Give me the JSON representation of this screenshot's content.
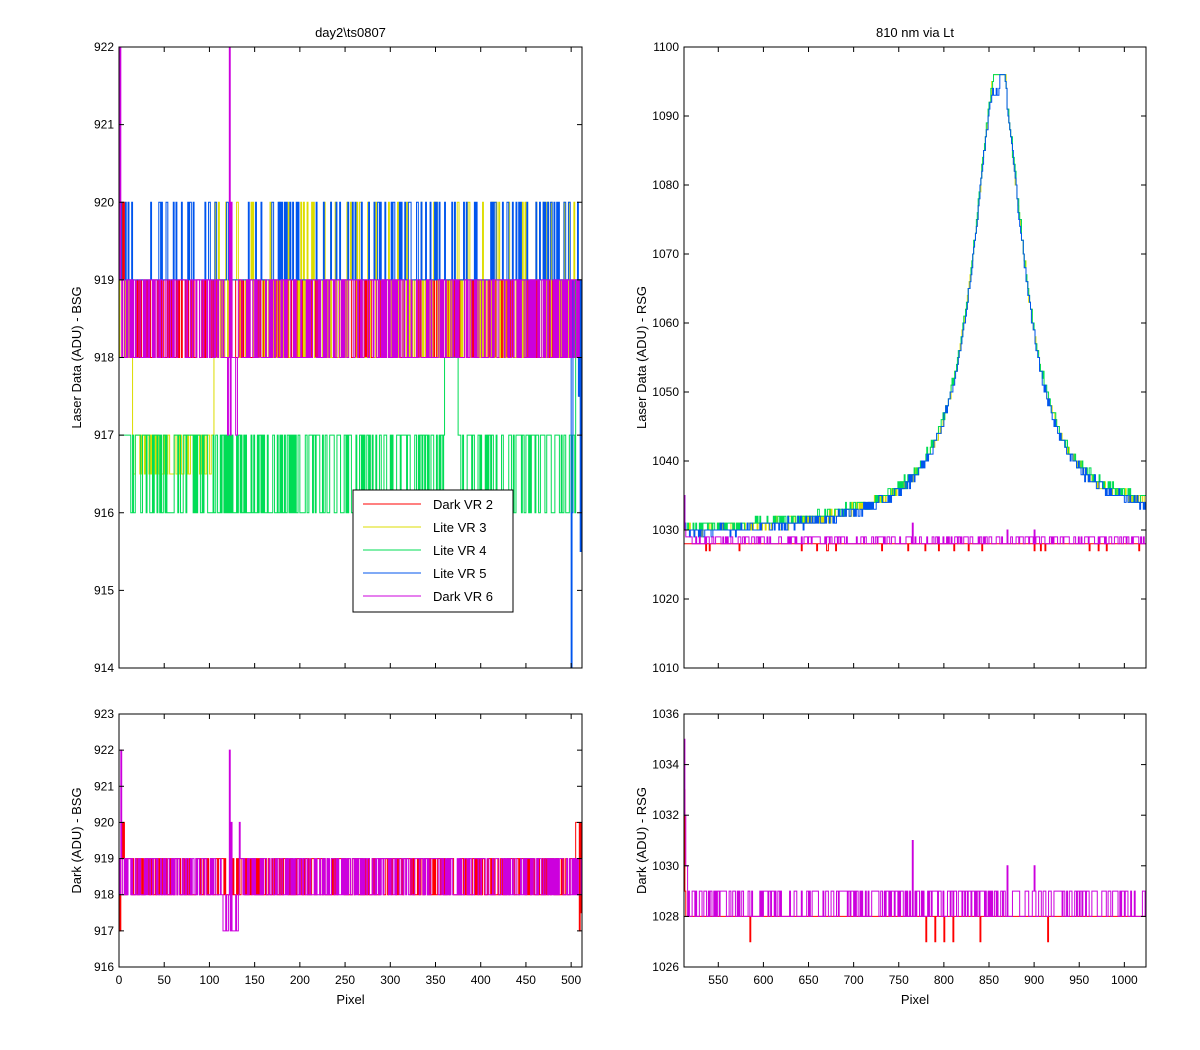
{
  "colors": {
    "Dark VR 2": "#ff0000",
    "Lite VR 3": "#dddd00",
    "Lite VR 4": "#00dd55",
    "Lite VR 5": "#0055ee",
    "Dark VR 6": "#cc00dd"
  },
  "chart_data": [
    {
      "id": "tl",
      "type": "line",
      "title": "day2\\ts0807",
      "xlabel": "",
      "ylabel": "Laser Data (ADU) - BSG",
      "xlim": [
        0,
        512
      ],
      "ylim": [
        914,
        922
      ],
      "xticks": [
        0,
        50,
        100,
        150,
        200,
        250,
        300,
        350,
        400,
        450,
        500
      ],
      "xticklabels_visible": false,
      "yticks": [
        914,
        915,
        916,
        917,
        918,
        919,
        920,
        921,
        922
      ],
      "legend": {
        "position": "lower-right",
        "entries": [
          "Dark VR 2",
          "Lite VR 3",
          "Lite VR 4",
          "Lite VR 5",
          "Dark VR 6"
        ]
      },
      "series": [
        {
          "name": "Dark VR 2",
          "x_range": [
            0,
            512
          ],
          "profile": "toggle 918-919 across full range; rise to 920 near x=0-5; drop to 917.5 near x=510"
        },
        {
          "name": "Lite VR 3",
          "x_range": [
            0,
            512
          ],
          "profile": "918-919 near x=0-15 dropping to 917; 916.5-917 x=15-105; 918-920 x=105-512"
        },
        {
          "name": "Lite VR 4",
          "x_range": [
            0,
            512
          ],
          "profile": "toggle 916-917 x=10-360 and x=375-505; rise to 918 x=360-375; 919 x=505-512"
        },
        {
          "name": "Lite VR 5",
          "x_range": [
            0,
            512
          ],
          "profile": "toggle 919-920 across most of range; spike down to 914 near x=500; 915.5 near x=510"
        },
        {
          "name": "Dark VR 6",
          "x_range": [
            0,
            512
          ],
          "profile": "toggle 918-919; spike to 922 near x=0 and x=122; dip to 917 near x=118-130"
        }
      ]
    },
    {
      "id": "tr",
      "type": "line",
      "title": "810 nm via Lt",
      "xlabel": "",
      "ylabel": "Laser Data (ADU) - RSG",
      "xlim": [
        512,
        1024
      ],
      "ylim": [
        1010,
        1100
      ],
      "xticks": [
        550,
        600,
        650,
        700,
        750,
        800,
        850,
        900,
        950,
        1000
      ],
      "xticklabels_visible": false,
      "yticks": [
        1010,
        1020,
        1030,
        1040,
        1050,
        1060,
        1070,
        1080,
        1090,
        1100
      ],
      "peak": {
        "x": 860,
        "y": 1096
      },
      "series": [
        {
          "name": "Dark VR 2",
          "x_range": [
            512,
            1024
          ],
          "baseline": 1028,
          "profile": "flat 1028 with dips to 1027"
        },
        {
          "name": "Lite VR 3",
          "x_range": [
            512,
            1024
          ],
          "profile": "baseline ~1029-1030 at left, broad peak centered x=860 reaching ~1096, returning to ~1031 at right"
        },
        {
          "name": "Lite VR 4",
          "x_range": [
            512,
            1024
          ],
          "profile": "same peak as Lite VR 3"
        },
        {
          "name": "Lite VR 5",
          "x_range": [
            512,
            1024
          ],
          "profile": "same peak as Lite VR 3, slight dip to ~1092 at x=858"
        },
        {
          "name": "Dark VR 6",
          "x_range": [
            512,
            1024
          ],
          "baseline": 1028.5,
          "profile": "toggle 1028-1029; spike to 1035 at x=512"
        }
      ]
    },
    {
      "id": "bl",
      "type": "line",
      "title": "",
      "xlabel": "Pixel",
      "ylabel": "Dark (ADU) - BSG",
      "xlim": [
        0,
        512
      ],
      "ylim": [
        916,
        923
      ],
      "xticks": [
        0,
        50,
        100,
        150,
        200,
        250,
        300,
        350,
        400,
        450,
        500
      ],
      "xticklabels_visible": true,
      "yticks": [
        916,
        917,
        918,
        919,
        920,
        921,
        922,
        923
      ],
      "series": [
        {
          "name": "Dark VR 2",
          "x_range": [
            0,
            512
          ],
          "profile": "toggle 918-919; 920 near x=0-5; 917-920 near x=505-512"
        },
        {
          "name": "Dark VR 6",
          "x_range": [
            0,
            512
          ],
          "profile": "toggle 918-919; spike 922 at x=2 and x=122; dip 917 near x=115-130"
        }
      ]
    },
    {
      "id": "br",
      "type": "line",
      "title": "",
      "xlabel": "Pixel",
      "ylabel": "Dark (ADU) - RSG",
      "xlim": [
        512,
        1024
      ],
      "ylim": [
        1026,
        1036
      ],
      "xticks": [
        550,
        600,
        650,
        700,
        750,
        800,
        850,
        900,
        950,
        1000
      ],
      "xticklabels_visible": true,
      "yticks": [
        1026,
        1028,
        1030,
        1032,
        1034,
        1036
      ],
      "series": [
        {
          "name": "Dark VR 2",
          "x_range": [
            512,
            1024
          ],
          "baseline": 1028,
          "profile": "flat 1028 with dips to 1027 near x=585, 780-810, 840, 915; early spike 1033 at x=512"
        },
        {
          "name": "Dark VR 6",
          "x_range": [
            512,
            1024
          ],
          "baseline": 1028.5,
          "profile": "toggle 1028-1029; spike 1035 at x=512, 1031 at x=765, 1030 at x=870 and 900"
        }
      ]
    }
  ]
}
